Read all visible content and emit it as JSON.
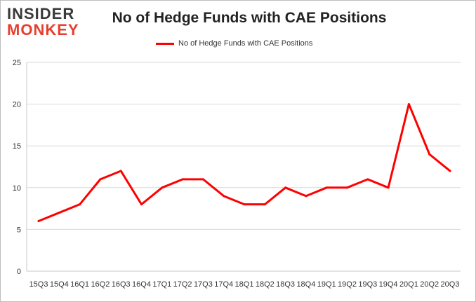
{
  "logo": {
    "line1": "INSIDER",
    "line2": "MONKEY"
  },
  "chart_data": {
    "type": "line",
    "title": "No of Hedge Funds with CAE Positions",
    "legend": "No of Hedge Funds with CAE Positions",
    "legend_position": "top",
    "grid": true,
    "color": "#ff0000",
    "ylim": [
      0,
      25
    ],
    "yticks": [
      0,
      5,
      10,
      15,
      20,
      25
    ],
    "categories": [
      "15Q3",
      "15Q4",
      "16Q1",
      "16Q2",
      "16Q3",
      "16Q4",
      "17Q1",
      "17Q2",
      "17Q3",
      "17Q4",
      "18Q1",
      "18Q2",
      "18Q3",
      "18Q4",
      "19Q1",
      "19Q2",
      "19Q3",
      "19Q4",
      "20Q1",
      "20Q2",
      "20Q3"
    ],
    "values": [
      6,
      7,
      8,
      11,
      12,
      8,
      10,
      11,
      11,
      9,
      8,
      8,
      10,
      9,
      10,
      10,
      11,
      10,
      20,
      14,
      12
    ]
  }
}
